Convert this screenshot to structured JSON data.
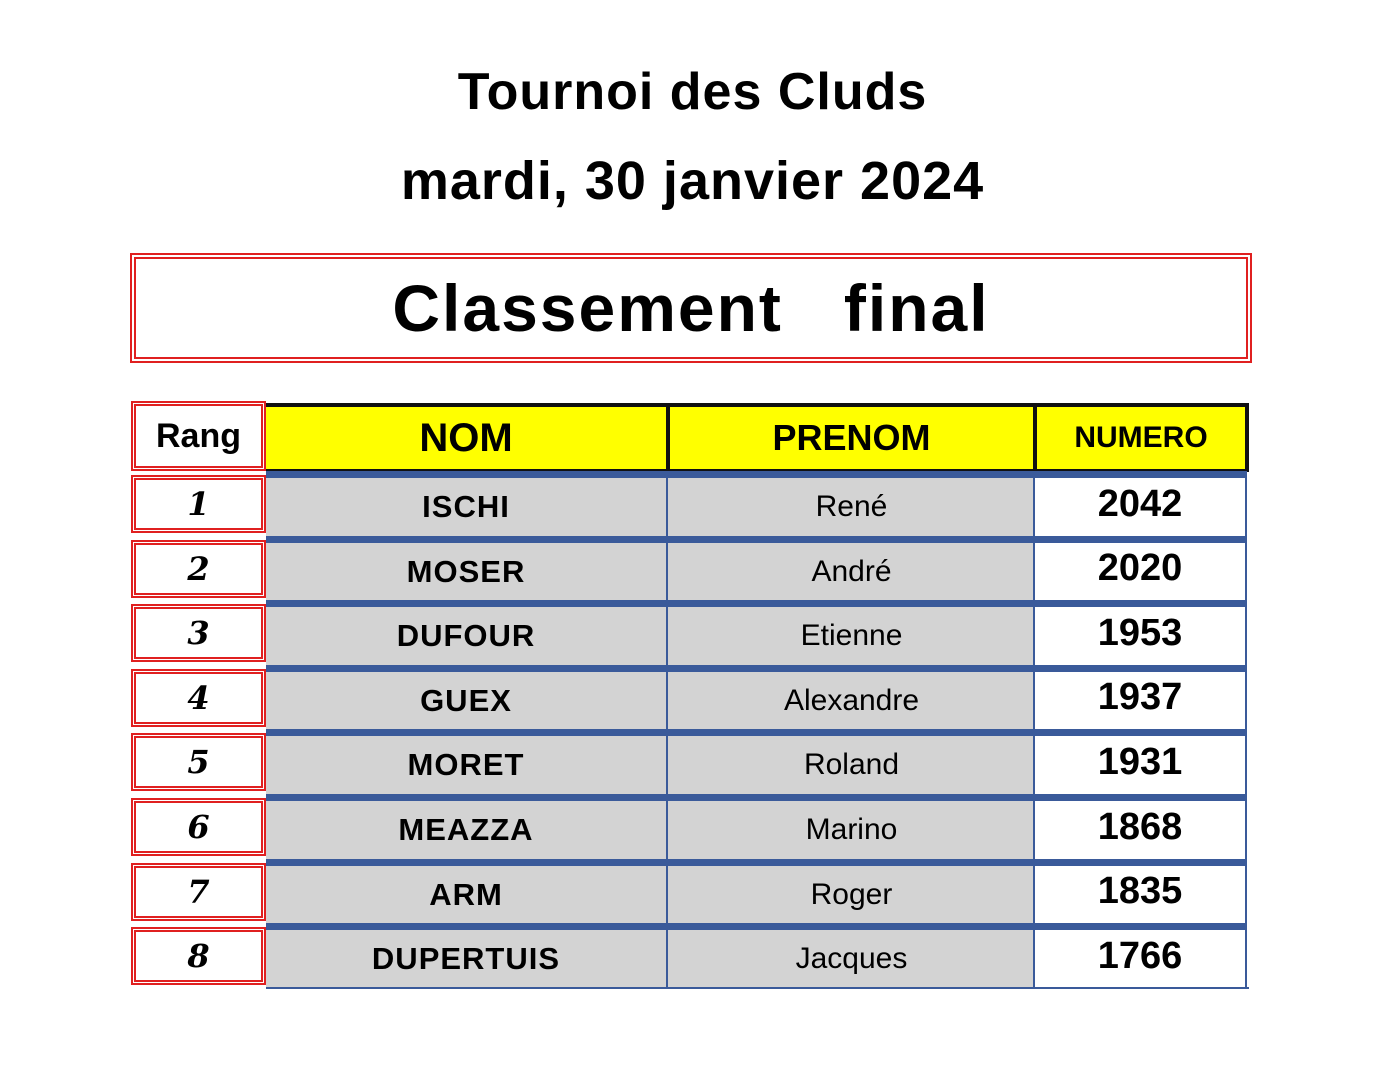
{
  "header": {
    "title": "Tournoi des Cluds",
    "date": "mardi, 30 janvier 2024"
  },
  "banner": "Classement   final",
  "table": {
    "columns": [
      "Rang",
      "NOM",
      "PRENOM",
      "NUMERO"
    ],
    "rows": [
      {
        "rang": "1",
        "nom": "ISCHI",
        "prenom": "René",
        "numero": "2042"
      },
      {
        "rang": "2",
        "nom": "MOSER",
        "prenom": "André",
        "numero": "2020"
      },
      {
        "rang": "3",
        "nom": "DUFOUR",
        "prenom": "Etienne",
        "numero": "1953"
      },
      {
        "rang": "4",
        "nom": "GUEX",
        "prenom": "Alexandre",
        "numero": "1937"
      },
      {
        "rang": "5",
        "nom": "MORET",
        "prenom": "Roland",
        "numero": "1931"
      },
      {
        "rang": "6",
        "nom": "MEAZZA",
        "prenom": "Marino",
        "numero": "1868"
      },
      {
        "rang": "7",
        "nom": "ARM",
        "prenom": "Roger",
        "numero": "1835"
      },
      {
        "rang": "8",
        "nom": "DUPERTUIS",
        "prenom": "Jacques",
        "numero": "1766"
      }
    ]
  },
  "colors": {
    "header_bg": "#ffff00",
    "row_bg": "#d3d3d3",
    "separator": "#3a5a9a",
    "frame": "#e02020"
  }
}
